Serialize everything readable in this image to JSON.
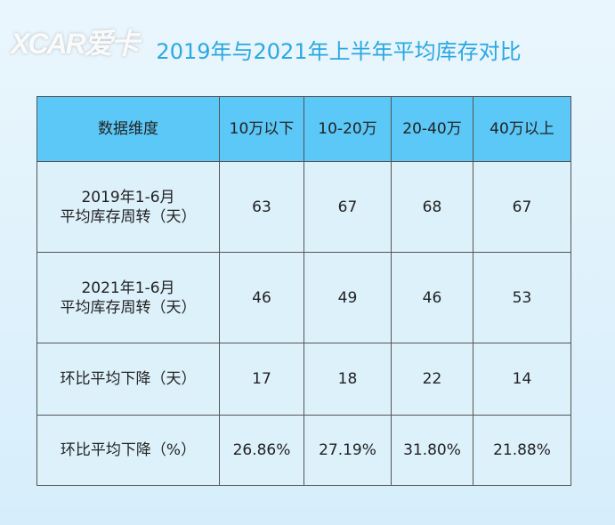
{
  "title": "2019年与2021年上半年平均库存对比",
  "watermark": "XCAR爱卡",
  "chart_data": {
    "type": "table",
    "title": "2019年与2021年上半年平均库存对比",
    "columns": [
      "数据维度",
      "10万以下",
      "10-20万",
      "20-40万",
      "40万以上"
    ],
    "rows": [
      {
        "label": [
          "2019年1-6月",
          "平均库存周转（天）"
        ],
        "values": [
          "63",
          "67",
          "68",
          "67"
        ]
      },
      {
        "label": [
          "2021年1-6月",
          "平均库存周转（天）"
        ],
        "values": [
          "46",
          "49",
          "46",
          "53"
        ]
      },
      {
        "label": [
          "环比平均下降（天）"
        ],
        "values": [
          "17",
          "18",
          "22",
          "14"
        ]
      },
      {
        "label": [
          "环比平均下降（%）"
        ],
        "values": [
          "26.86%",
          "27.19%",
          "31.80%",
          "21.88%"
        ]
      }
    ]
  }
}
